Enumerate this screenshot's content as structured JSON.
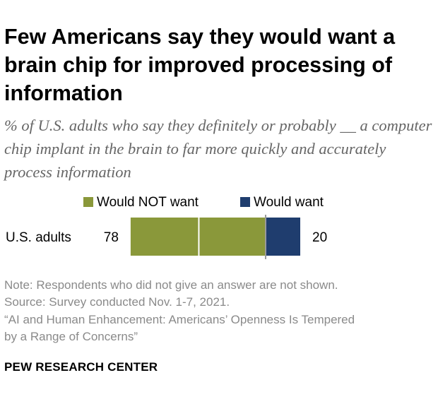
{
  "title": "Few Americans say they would want a brain chip for improved processing of information",
  "subtitle": "% of U.S. adults who say they definitely or probably __ a computer chip implant in the brain to far more quickly and accurately process information",
  "chart_data": {
    "type": "bar",
    "orientation": "horizontal-diverging",
    "categories": [
      "U.S. adults"
    ],
    "series": [
      {
        "name": "Would NOT want",
        "values": [
          78
        ],
        "color": "#8a983a"
      },
      {
        "name": "Would want",
        "values": [
          20
        ],
        "color": "#1f3d6e"
      }
    ],
    "title": "Few Americans say they would want a brain chip for improved processing of information",
    "xlabel": "",
    "ylabel": "",
    "xlim": [
      0,
      100
    ],
    "legend": "top",
    "grid": false
  },
  "notes": {
    "note": "Note: Respondents who did not give an answer are not shown.",
    "source": "Source: Survey conducted Nov. 1-7, 2021.",
    "report_line1": "“AI and Human Enhancement: Americans’ Openness Is Tempered",
    "report_line2": "by a Range of Concerns”"
  },
  "org": "PEW RESEARCH CENTER",
  "colors": {
    "not_want": "#8a983a",
    "want": "#1f3d6e",
    "note_text": "#8a8a8a",
    "subtitle_text": "#666666"
  }
}
